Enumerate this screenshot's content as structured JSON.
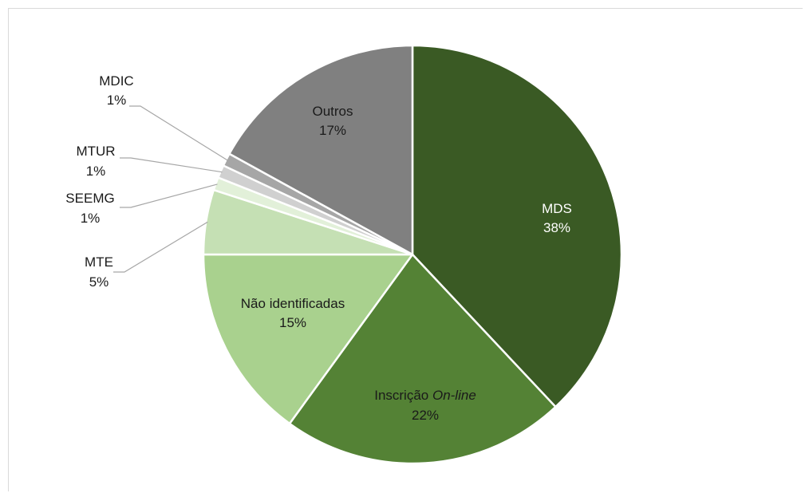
{
  "chart_data": {
    "type": "pie",
    "slices": [
      {
        "label": "MDS",
        "value": 38,
        "value_label": "38%",
        "color": "#3a5a24"
      },
      {
        "label": "Inscrição On-line",
        "label_prefix": "Inscrição ",
        "label_italic": "On-line",
        "value": 22,
        "value_label": "22%",
        "color": "#548235"
      },
      {
        "label": "Não identificadas",
        "value": 15,
        "value_label": "15%",
        "color": "#a9d18e"
      },
      {
        "label": "MTE",
        "value": 5,
        "value_label": "5%",
        "color": "#c5e0b4"
      },
      {
        "label": "SEEMG",
        "value": 1,
        "value_label": "1%",
        "color": "#e2f0d9"
      },
      {
        "label": "MTUR",
        "value": 1,
        "value_label": "1%",
        "color": "#d0d0d0"
      },
      {
        "label": "MDIC",
        "value": 1,
        "value_label": "1%",
        "color": "#a6a6a6"
      },
      {
        "label": "Outros",
        "value": 17,
        "value_label": "17%",
        "color": "#808080"
      }
    ]
  }
}
